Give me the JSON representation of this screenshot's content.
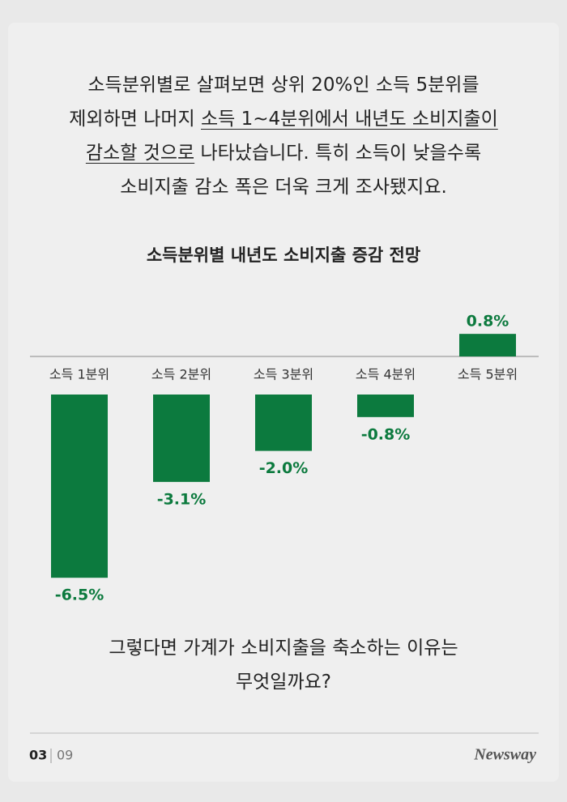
{
  "intro": [
    [
      "소득분위별로 살펴보면 상위 20%인 소득 5분위를"
    ],
    [
      "제외하면 나머지 ",
      "소득 1~4분위에서 내년도 소비지출이"
    ],
    [
      "감소할 것으로",
      " 나타났습니다. 특히 소득이 낮을수록"
    ],
    [
      "소비지출 감소 폭은 더욱 크게 조사됐지요."
    ]
  ],
  "chart_data": {
    "type": "bar",
    "title": "소득분위별 내년도 소비지출 증감 전망",
    "categories": [
      "소득 1분위",
      "소득 2분위",
      "소득 3분위",
      "소득 4분위",
      "소득 5분위"
    ],
    "values": [
      -6.5,
      -3.1,
      -2.0,
      -0.8,
      0.8
    ],
    "value_labels": [
      "-6.5%",
      "-3.1%",
      "-2.0%",
      "-0.8%",
      "0.8%"
    ],
    "color": "#0c7a3e"
  },
  "question": [
    "그렇다면 가계가 소비지출을 축소하는 이유는",
    "무엇일까요?"
  ],
  "footer": {
    "page": "03",
    "total": "09",
    "brand": "Newsway"
  }
}
